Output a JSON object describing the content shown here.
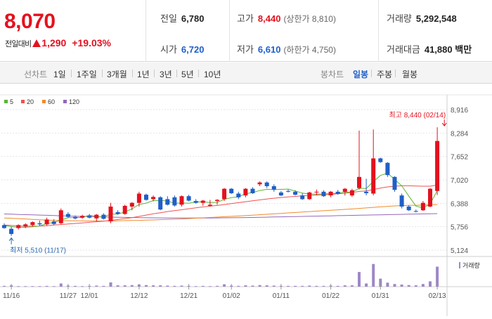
{
  "quote": {
    "price": "8,070",
    "change_label": "전일대비",
    "change": "1,290",
    "change_pct": "+19.03%"
  },
  "stats": {
    "prev_close_label": "전일",
    "prev_close": "6,780",
    "open_label": "시가",
    "open": "6,720",
    "high_label": "고가",
    "high": "8,440",
    "upper_limit": "(상한가 8,810)",
    "low_label": "저가",
    "low": "6,610",
    "lower_limit": "(하한가 4,750)",
    "volume_label": "거래량",
    "volume": "5,292,548",
    "amount_label": "거래대금",
    "amount": "41,880",
    "amount_unit": "백만"
  },
  "toolbar": {
    "line_label": "선차트",
    "line_periods": [
      "1일",
      "1주일",
      "3개월",
      "1년",
      "3년",
      "5년",
      "10년"
    ],
    "candle_label": "봉차트",
    "candle_periods": [
      "일봉",
      "주봉",
      "월봉"
    ],
    "candle_active": "일봉"
  },
  "colors": {
    "up": "#e4111e",
    "down": "#1f5fc8",
    "ma5": "#5cb531",
    "ma20": "#ef5350",
    "ma60": "#f08c28",
    "ma120": "#9467bd",
    "volume": "#9d88c6"
  },
  "chart_data": {
    "type": "candlestick",
    "ma_legend": [
      {
        "name": "5",
        "color": "#5cb531"
      },
      {
        "name": "20",
        "color": "#ef5350"
      },
      {
        "name": "60",
        "color": "#f08c28"
      },
      {
        "name": "120",
        "color": "#9467bd"
      }
    ],
    "y_ticks": [
      "8,916",
      "8,284",
      "7,652",
      "7,020",
      "6,388",
      "5,756",
      "5,124"
    ],
    "ylim": [
      5124,
      8916
    ],
    "x_ticks": [
      {
        "label": "11/16",
        "index": 1
      },
      {
        "label": "11/27",
        "index": 9
      },
      {
        "label": "12/01",
        "index": 12
      },
      {
        "label": "12/12",
        "index": 19
      },
      {
        "label": "12/21",
        "index": 26
      },
      {
        "label": "01/02",
        "index": 32
      },
      {
        "label": "01/11",
        "index": 39
      },
      {
        "label": "01/22",
        "index": 46
      },
      {
        "label": "01/31",
        "index": 53
      },
      {
        "label": "02/13",
        "index": 61
      }
    ],
    "annotations": [
      {
        "text": "최고 8,440 (02/14)",
        "index": 62,
        "value": 8440
      },
      {
        "text": "최저 5,510 (11/17)",
        "index": 1,
        "value": 5510
      }
    ],
    "volume_label": "거래량",
    "candles": [
      [
        5800,
        5850,
        5700,
        5720
      ],
      [
        5700,
        5760,
        5510,
        5560
      ],
      [
        5720,
        5820,
        5680,
        5800
      ],
      [
        5760,
        5850,
        5720,
        5820
      ],
      [
        5800,
        5900,
        5760,
        5880
      ],
      [
        5850,
        5920,
        5780,
        5820
      ],
      [
        5820,
        6000,
        5780,
        5950
      ],
      [
        5900,
        5960,
        5800,
        5830
      ],
      [
        5850,
        6250,
        5820,
        6200
      ],
      [
        6100,
        6150,
        6000,
        6020
      ],
      [
        6020,
        6060,
        5950,
        5980
      ],
      [
        6000,
        6080,
        5970,
        6050
      ],
      [
        6050,
        6100,
        5980,
        6000
      ],
      [
        5980,
        6100,
        5900,
        6080
      ],
      [
        6080,
        6120,
        5950,
        5970
      ],
      [
        5900,
        6400,
        5850,
        6300
      ],
      [
        6150,
        6200,
        6080,
        6100
      ],
      [
        6100,
        6350,
        6080,
        6320
      ],
      [
        6300,
        6420,
        6200,
        6400
      ],
      [
        6400,
        6700,
        6300,
        6650
      ],
      [
        6620,
        6650,
        6460,
        6480
      ],
      [
        6500,
        6600,
        6440,
        6560
      ],
      [
        6550,
        6580,
        6200,
        6220
      ],
      [
        6500,
        6580,
        6330,
        6350
      ],
      [
        6550,
        6600,
        6300,
        6330
      ],
      [
        6350,
        6600,
        6300,
        6580
      ],
      [
        6580,
        6620,
        6440,
        6460
      ],
      [
        6450,
        6500,
        6380,
        6400
      ],
      [
        6400,
        6480,
        6320,
        6460
      ],
      [
        6320,
        6480,
        6300,
        6350
      ],
      [
        6450,
        6500,
        6350,
        6480
      ],
      [
        6500,
        6800,
        6450,
        6780
      ],
      [
        6780,
        6800,
        6640,
        6660
      ],
      [
        6650,
        6700,
        6500,
        6550
      ],
      [
        6600,
        6800,
        6550,
        6780
      ],
      [
        6780,
        6820,
        6640,
        6660
      ],
      [
        6900,
        6980,
        6850,
        6950
      ],
      [
        6950,
        6980,
        6800,
        6850
      ],
      [
        6850,
        6900,
        6700,
        6760
      ],
      [
        6680,
        6720,
        6580,
        6600
      ],
      [
        6720,
        6760,
        6680,
        6700
      ],
      [
        6700,
        6740,
        6600,
        6620
      ],
      [
        6600,
        6660,
        6480,
        6500
      ],
      [
        6500,
        6700,
        6480,
        6680
      ],
      [
        6680,
        6760,
        6600,
        6700
      ],
      [
        6700,
        6740,
        6560,
        6580
      ],
      [
        6600,
        6720,
        6550,
        6700
      ],
      [
        6700,
        6750,
        6620,
        6640
      ],
      [
        6700,
        6800,
        6600,
        6780
      ],
      [
        6600,
        6780,
        6560,
        6740
      ],
      [
        6800,
        8350,
        6760,
        7100
      ],
      [
        6700,
        7050,
        6600,
        6660
      ],
      [
        6650,
        8380,
        6600,
        7600
      ],
      [
        7600,
        7620,
        7480,
        7500
      ],
      [
        7480,
        7500,
        7100,
        7150
      ],
      [
        7100,
        7120,
        6700,
        6750
      ],
      [
        6600,
        6650,
        6250,
        6300
      ],
      [
        6300,
        6340,
        6180,
        6200
      ],
      [
        6180,
        6220,
        6140,
        6160
      ],
      [
        6200,
        6450,
        6180,
        6400
      ],
      [
        6300,
        6800,
        6280,
        6780
      ],
      [
        6720,
        8440,
        6610,
        8070
      ]
    ],
    "ma5": [
      5790,
      5760,
      5740,
      5740,
      5756,
      5776,
      5842,
      5870,
      5942,
      5998,
      6006,
      6006,
      6070,
      6032,
      6022,
      6094,
      6098,
      6154,
      6238,
      6356,
      6392,
      6462,
      6462,
      6452,
      6388,
      6396,
      6388,
      6424,
      6426,
      6410,
      6414,
      6494,
      6540,
      6564,
      6646,
      6680,
      6732,
      6766,
      6756,
      6764,
      6772,
      6718,
      6664,
      6636,
      6636,
      6640,
      6648,
      6660,
      6690,
      6688,
      6792,
      6788,
      6976,
      7140,
      7202,
      7032,
      6860,
      6580,
      6312,
      6262,
      6368,
      6732
    ],
    "ma20": [
      5800,
      5790,
      5780,
      5770,
      5770,
      5775,
      5785,
      5800,
      5815,
      5830,
      5845,
      5860,
      5875,
      5890,
      5905,
      5925,
      5950,
      5975,
      6000,
      6035,
      6070,
      6105,
      6135,
      6165,
      6190,
      6215,
      6240,
      6265,
      6290,
      6310,
      6330,
      6355,
      6380,
      6405,
      6430,
      6455,
      6480,
      6505,
      6525,
      6545,
      6560,
      6575,
      6590,
      6600,
      6610,
      6620,
      6630,
      6645,
      6660,
      6680,
      6710,
      6720,
      6760,
      6800,
      6830,
      6850,
      6860,
      6860,
      6855,
      6850,
      6850,
      6880
    ],
    "ma60": [
      5990,
      5985,
      5975,
      5965,
      5955,
      5945,
      5935,
      5928,
      5922,
      5918,
      5915,
      5912,
      5910,
      5910,
      5911,
      5913,
      5916,
      5920,
      5924,
      5928,
      5934,
      5940,
      5946,
      5952,
      5958,
      5966,
      5976,
      5986,
      5996,
      6006,
      6016,
      6026,
      6036,
      6046,
      6056,
      6068,
      6080,
      6092,
      6104,
      6116,
      6128,
      6140,
      6152,
      6164,
      6176,
      6188,
      6200,
      6212,
      6224,
      6236,
      6250,
      6264,
      6278,
      6292,
      6306,
      6318,
      6326,
      6332,
      6336,
      6340,
      6346,
      6355
    ],
    "ma120": [
      6100,
      6094,
      6088,
      6082,
      6076,
      6070,
      6064,
      6058,
      6052,
      6046,
      6040,
      6034,
      6028,
      6024,
      6020,
      6016,
      6012,
      6008,
      6004,
      6000,
      5998,
      5996,
      5994,
      5992,
      5990,
      5990,
      5990,
      5990,
      5991,
      5992,
      5994,
      5996,
      5998,
      6000,
      6003,
      6006,
      6010,
      6014,
      6018,
      6022,
      6026,
      6030,
      6034,
      6038,
      6042,
      6046,
      6050,
      6054,
      6058,
      6062,
      6066,
      6070,
      6074,
      6078,
      6082,
      6086,
      6090,
      6094,
      6098,
      6102,
      6106,
      6110
    ],
    "volume": [
      0.03,
      0.05,
      0.02,
      0.02,
      0.02,
      0.02,
      0.03,
      0.02,
      0.12,
      0.04,
      0.03,
      0.02,
      0.03,
      0.04,
      0.03,
      0.16,
      0.05,
      0.05,
      0.06,
      0.08,
      0.06,
      0.05,
      0.05,
      0.04,
      0.03,
      0.04,
      0.03,
      0.02,
      0.03,
      0.02,
      0.03,
      0.09,
      0.04,
      0.03,
      0.05,
      0.04,
      0.06,
      0.05,
      0.04,
      0.03,
      0.03,
      0.03,
      0.03,
      0.04,
      0.03,
      0.03,
      0.04,
      0.03,
      0.05,
      0.05,
      0.55,
      0.12,
      0.85,
      0.3,
      0.15,
      0.1,
      0.08,
      0.06,
      0.05,
      0.1,
      0.2,
      0.75
    ]
  }
}
